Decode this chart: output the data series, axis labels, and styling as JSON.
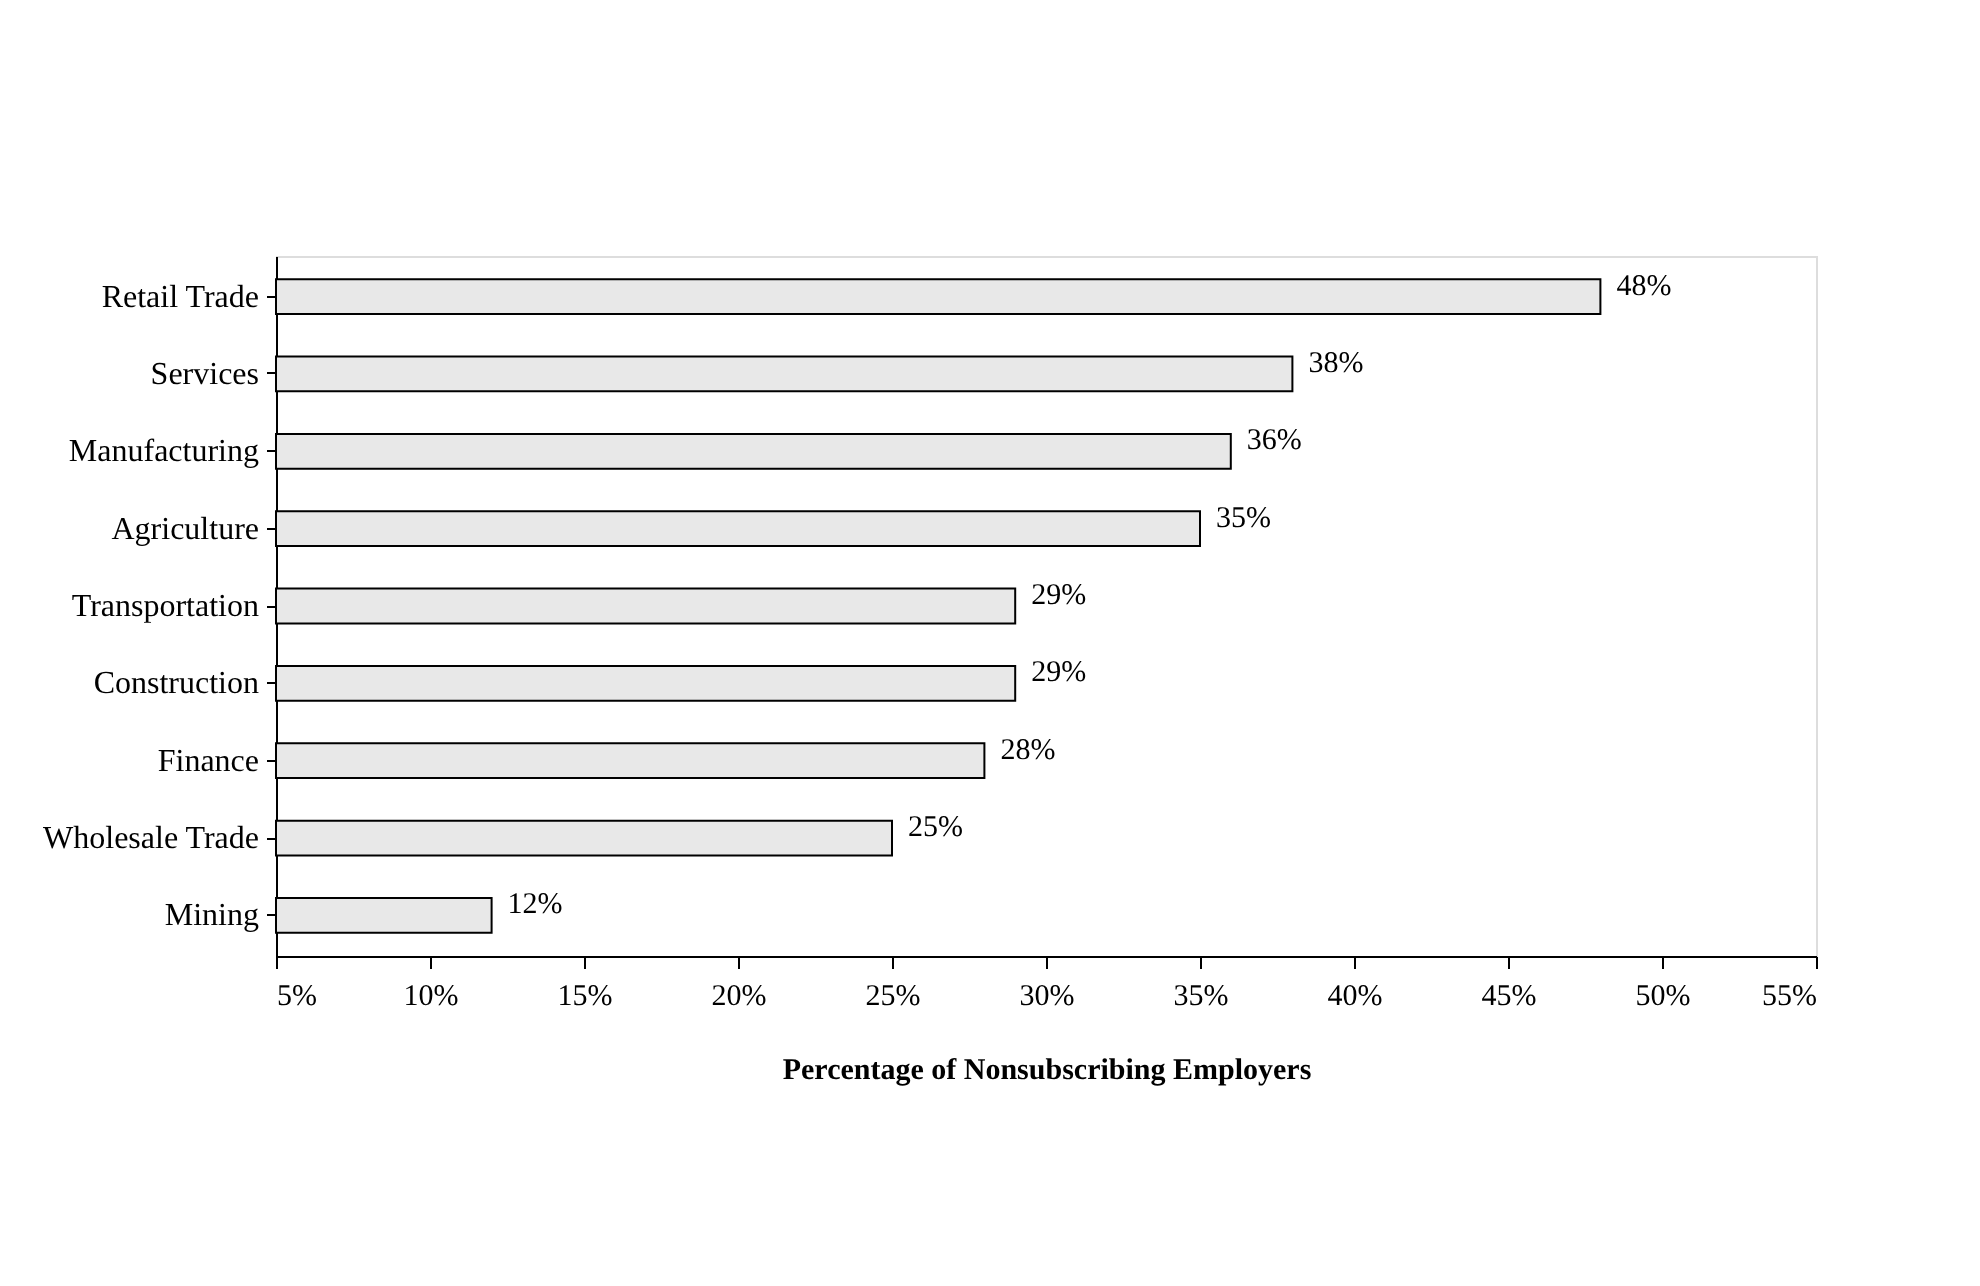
{
  "chart_data": {
    "type": "bar",
    "orientation": "horizontal",
    "categories": [
      "Retail Trade",
      "Services",
      "Manufacturing",
      "Agriculture",
      "Transportation",
      "Construction",
      "Finance",
      "Wholesale Trade",
      "Mining"
    ],
    "values": [
      48,
      38,
      36,
      35,
      29,
      29,
      28,
      25,
      12
    ],
    "value_labels": [
      "48%",
      "38%",
      "36%",
      "35%",
      "29%",
      "29%",
      "28%",
      "25%",
      "12%"
    ],
    "color": "#e8e8e8",
    "xlim": [
      5,
      55
    ],
    "xticks": [
      {
        "value": 5,
        "label": "5%"
      },
      {
        "value": 10,
        "label": "10%"
      },
      {
        "value": 15,
        "label": "15%"
      },
      {
        "value": 20,
        "label": "20%"
      },
      {
        "value": 25,
        "label": "25%"
      },
      {
        "value": 30,
        "label": "30%"
      },
      {
        "value": 35,
        "label": "35%"
      },
      {
        "value": 40,
        "label": "40%"
      },
      {
        "value": 45,
        "label": "45%"
      },
      {
        "value": 50,
        "label": "50%"
      },
      {
        "value": 55,
        "label": "55%"
      }
    ],
    "xlabel": "Percentage of Nonsubscribing Employers",
    "grid": false
  }
}
